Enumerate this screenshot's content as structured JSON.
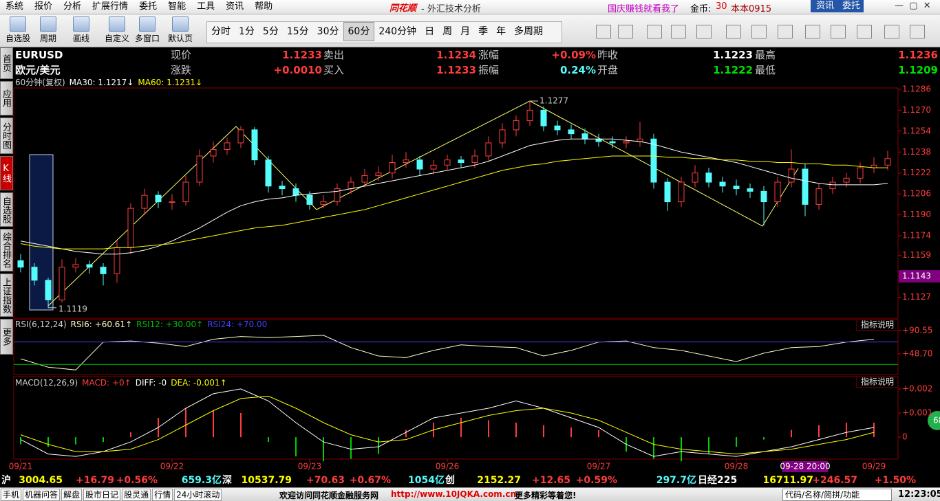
{
  "menu": {
    "items": [
      "系统",
      "报价",
      "分析",
      "扩展行情",
      "委托",
      "智能",
      "工具",
      "资讯",
      "帮助"
    ],
    "logo": "同花顺",
    "title": " - 外汇技术分析",
    "promo": "国庆赚钱就看我了",
    "coin_label": "金币:",
    "coin": "30",
    "user": "本本0915",
    "news": "资讯",
    "trade": "委托"
  },
  "toolbar": {
    "tools": [
      "自选股",
      "周期",
      "画线",
      "自定义",
      "多窗口",
      "默认页"
    ],
    "periods": [
      "分时",
      "1分",
      "5分",
      "15分",
      "30分",
      "60分",
      "240分钟",
      "日",
      "周",
      "月",
      "季",
      "年",
      "多周期"
    ],
    "active_period": 5
  },
  "sidebar": {
    "tabs": [
      "首页",
      "应用",
      "分时图",
      "K线图",
      "自选股",
      "综合排名",
      "上证指数",
      "更多"
    ],
    "active": 3
  },
  "quote": {
    "rows": [
      [
        "EURUSD",
        "现价",
        "1.1233",
        "卖出",
        "1.1234",
        "涨幅",
        "+0.09%",
        "昨收",
        "1.1223",
        "最高",
        "1.1236"
      ],
      [
        "欧元/美元",
        "涨跌",
        "+0.0010",
        "买入",
        "1.1233",
        "振幅",
        "0.24%",
        "开盘",
        "1.1222",
        "最低",
        "1.1209"
      ]
    ],
    "colors": [
      [
        "#ffffff",
        "#c8c8c8",
        "#ff3c3c",
        "#c8c8c8",
        "#ff3c3c",
        "#c8c8c8",
        "#ff3c3c",
        "#c8c8c8",
        "#ffffff",
        "#c8c8c8",
        "#ff3c3c"
      ],
      [
        "#ffffff",
        "#c8c8c8",
        "#ff3c3c",
        "#c8c8c8",
        "#ff3c3c",
        "#c8c8c8",
        "#54fcfc",
        "#c8c8c8",
        "#00e000",
        "#c8c8c8",
        "#00e000"
      ]
    ]
  },
  "chart_data": [
    {
      "type": "candlestick",
      "title": "60分钟(复权)",
      "xlim": [
        -0.5,
        63.75
      ],
      "xticks": [
        {
          "value": 0,
          "label": "09/21"
        },
        {
          "value": 11,
          "label": "09/22"
        },
        {
          "value": 21,
          "label": "09/23"
        },
        {
          "value": 31,
          "label": "09/26"
        },
        {
          "value": 42,
          "label": "09/27"
        },
        {
          "value": 52,
          "label": "09/28"
        },
        {
          "value": 62,
          "label": "09/29"
        }
      ],
      "ylim": [
        1.1111,
        1.1287
      ],
      "yticks": [
        1.1286,
        {
          "value": 1.127,
          "label": "1.1270"
        },
        1.1254,
        1.1238,
        1.1222,
        1.1206,
        {
          "value": 1.119,
          "label": "1.1190"
        },
        1.1174,
        1.1159,
        1.1143,
        1.1127
      ],
      "highlight_tick": 9,
      "up_color": "#ff3c3c",
      "down_color": "#54fcfc",
      "ohlc": [
        [
          1.1155,
          1.116,
          1.1146,
          1.115
        ],
        [
          1.115,
          1.1153,
          1.1136,
          1.114
        ],
        [
          1.114,
          1.1142,
          1.1119,
          1.1125
        ],
        [
          1.1125,
          1.1156,
          1.1123,
          1.115
        ],
        [
          1.115,
          1.1157,
          1.1146,
          1.1152
        ],
        [
          1.1152,
          1.1155,
          1.1145,
          1.115
        ],
        [
          1.115,
          1.1153,
          1.1136,
          1.1145
        ],
        [
          1.1145,
          1.117,
          1.1138,
          1.1165
        ],
        [
          1.1165,
          1.1199,
          1.116,
          1.1195
        ],
        [
          1.1195,
          1.121,
          1.119,
          1.1205
        ],
        [
          1.1205,
          1.1208,
          1.1195,
          1.12
        ],
        [
          1.12,
          1.1206,
          1.1194,
          1.12
        ],
        [
          1.12,
          1.122,
          1.1197,
          1.1215
        ],
        [
          1.1215,
          1.124,
          1.1212,
          1.1235
        ],
        [
          1.1235,
          1.1246,
          1.123,
          1.124
        ],
        [
          1.124,
          1.1249,
          1.1236,
          1.1245
        ],
        [
          1.1245,
          1.1258,
          1.1241,
          1.1255
        ],
        [
          1.1255,
          1.1257,
          1.1228,
          1.1232
        ],
        [
          1.1232,
          1.1235,
          1.1207,
          1.1212
        ],
        [
          1.1212,
          1.1216,
          1.1205,
          1.121
        ],
        [
          1.121,
          1.1214,
          1.12,
          1.1205
        ],
        [
          1.1205,
          1.1208,
          1.1194,
          1.1198
        ],
        [
          1.1198,
          1.1205,
          1.1195,
          1.12
        ],
        [
          1.12,
          1.1214,
          1.1197,
          1.121
        ],
        [
          1.121,
          1.1219,
          1.1206,
          1.1215
        ],
        [
          1.1215,
          1.1225,
          1.1211,
          1.122
        ],
        [
          1.122,
          1.1227,
          1.1216,
          1.1222
        ],
        [
          1.1222,
          1.1236,
          1.1218,
          1.123
        ],
        [
          1.123,
          1.1238,
          1.1226,
          1.1232
        ],
        [
          1.1232,
          1.1235,
          1.122,
          1.1225
        ],
        [
          1.1225,
          1.1232,
          1.1221,
          1.1228
        ],
        [
          1.1228,
          1.1236,
          1.1224,
          1.1232
        ],
        [
          1.1232,
          1.1235,
          1.1226,
          1.123
        ],
        [
          1.123,
          1.124,
          1.1226,
          1.1235
        ],
        [
          1.1235,
          1.125,
          1.1231,
          1.1245
        ],
        [
          1.1245,
          1.126,
          1.1241,
          1.1255
        ],
        [
          1.1255,
          1.1266,
          1.125,
          1.1262
        ],
        [
          1.1262,
          1.1277,
          1.1258,
          1.127
        ],
        [
          1.127,
          1.1273,
          1.1254,
          1.1258
        ],
        [
          1.1258,
          1.1262,
          1.1251,
          1.1255
        ],
        [
          1.1255,
          1.1259,
          1.1248,
          1.1252
        ],
        [
          1.1252,
          1.1256,
          1.1244,
          1.1248
        ],
        [
          1.1248,
          1.1252,
          1.1242,
          1.1246
        ],
        [
          1.1246,
          1.125,
          1.1241,
          1.1245
        ],
        [
          1.1245,
          1.125,
          1.1241,
          1.1246
        ],
        [
          1.1246,
          1.1261,
          1.1242,
          1.1248
        ],
        [
          1.1248,
          1.1252,
          1.121,
          1.1215
        ],
        [
          1.1215,
          1.1218,
          1.1193,
          1.12
        ],
        [
          1.12,
          1.1219,
          1.1196,
          1.1215
        ],
        [
          1.1215,
          1.1228,
          1.1211,
          1.1222
        ],
        [
          1.1222,
          1.1226,
          1.1211,
          1.1215
        ],
        [
          1.1215,
          1.1219,
          1.1207,
          1.1212
        ],
        [
          1.1212,
          1.1217,
          1.1205,
          1.121
        ],
        [
          1.121,
          1.1214,
          1.1203,
          1.1208
        ],
        [
          1.1208,
          1.1212,
          1.1182,
          1.12
        ],
        [
          1.12,
          1.1219,
          1.1196,
          1.1215
        ],
        [
          1.1215,
          1.124,
          1.1211,
          1.1225
        ],
        [
          1.1225,
          1.1229,
          1.1189,
          1.1198
        ],
        [
          1.1198,
          1.1214,
          1.1194,
          1.121
        ],
        [
          1.121,
          1.1219,
          1.1206,
          1.1215
        ],
        [
          1.1215,
          1.1222,
          1.1211,
          1.1218
        ],
        [
          1.1218,
          1.123,
          1.1214,
          1.1226
        ],
        [
          1.1226,
          1.1234,
          1.1222,
          1.1228
        ],
        [
          1.1228,
          1.1239,
          1.1224,
          1.1233
        ]
      ],
      "series": [
        {
          "name": "MA30: 1.1217↓",
          "color": "#ffffff",
          "values": [
            1.117,
            1.1168,
            1.1166,
            1.1164,
            1.1162,
            1.1161,
            1.116,
            1.116,
            1.1161,
            1.1163,
            1.1166,
            1.117,
            1.1175,
            1.118,
            1.1186,
            1.1192,
            1.1197,
            1.12,
            1.1202,
            1.1203,
            1.1205,
            1.1206,
            1.1207,
            1.1208,
            1.121,
            1.1212,
            1.1214,
            1.1216,
            1.1218,
            1.122,
            1.1222,
            1.1224,
            1.1226,
            1.1228,
            1.1231,
            1.1235,
            1.1239,
            1.1243,
            1.1245,
            1.1247,
            1.1248,
            1.1248,
            1.1248,
            1.1248,
            1.1247,
            1.1246,
            1.1244,
            1.1241,
            1.1238,
            1.1236,
            1.1234,
            1.1232,
            1.123,
            1.1227,
            1.1224,
            1.1221,
            1.1218,
            1.1216,
            1.1214,
            1.1213,
            1.1213,
            1.1213,
            1.1213,
            1.1214
          ]
        },
        {
          "name": "MA60: 1.1231↓",
          "color": "#ffff00",
          "values": [
            1.1168,
            1.1166,
            1.1165,
            1.1164,
            1.1164,
            1.1164,
            1.1164,
            1.1165,
            1.1165,
            1.1166,
            1.1167,
            1.1168,
            1.117,
            1.1172,
            1.1174,
            1.1176,
            1.1178,
            1.118,
            1.1181,
            1.1182,
            1.1184,
            1.1186,
            1.1188,
            1.119,
            1.1192,
            1.1194,
            1.1197,
            1.12,
            1.1203,
            1.1206,
            1.1209,
            1.1212,
            1.1215,
            1.1218,
            1.1221,
            1.1224,
            1.1226,
            1.1228,
            1.1229,
            1.1231,
            1.1232,
            1.1233,
            1.1234,
            1.1235,
            1.1235,
            1.1235,
            1.1235,
            1.1234,
            1.1234,
            1.1233,
            1.1233,
            1.1232,
            1.1232,
            1.1231,
            1.1231,
            1.123,
            1.123,
            1.1229,
            1.1229,
            1.1228,
            1.1228,
            1.1227,
            1.1226,
            1.1226
          ]
        }
      ],
      "high_label": 1.1277,
      "low_label": 1.1119,
      "cursor": {
        "index": 57,
        "label": "09-28 20:00"
      }
    },
    {
      "type": "rsi",
      "title": "RSI(6,12,24)",
      "indicator_button": "指标说明",
      "xlim": [
        -0.25,
        31.875
      ],
      "ylim": [
        11.8,
        110.2
      ],
      "yticks": [
        {
          "value": 90.55,
          "label": "+90.55"
        },
        {
          "value": 48.7,
          "label": "+48.70"
        }
      ],
      "series": [
        {
          "name": "RSI6: +60.61↑",
          "color": "#ffffcc",
          "values": [
            40,
            25,
            20,
            70,
            72,
            68,
            62,
            75,
            80,
            78,
            80,
            82,
            60,
            45,
            42,
            55,
            65,
            62,
            60,
            45,
            55,
            70,
            72,
            60,
            55,
            45,
            35,
            50,
            60,
            62,
            70,
            75
          ]
        },
        {
          "name": "RSI12: +30.00↑",
          "color": "#00c000",
          "level": 30
        },
        {
          "name": "RSI24: +70.00",
          "color": "#4040ff",
          "level": 70
        }
      ]
    },
    {
      "type": "macd",
      "title": "MACD(12,26,9)",
      "indicator_button": "指标说明",
      "xlim": [
        -0.25,
        31.875
      ],
      "ylim": [
        -0.00091,
        0.00251
      ],
      "yticks": [
        {
          "value": 0.002,
          "label": "+0.002"
        },
        {
          "value": 0.001,
          "label": "+0.001"
        },
        0
      ],
      "series": [
        {
          "name": "MACD: +0↑",
          "color": "#ff3c3c",
          "negative_color": "#00d000",
          "style": "bar",
          "values": [
            -0.0003,
            -0.0004,
            -0.0003,
            -0.0002,
            0.0002,
            0.0008,
            0.0012,
            0.0011,
            0.001,
            -0.0002,
            -0.0008,
            -0.001,
            -0.0009,
            -0.0007,
            0.0003,
            0.0006,
            0.0008,
            0.0007,
            0.0006,
            0.0005,
            0.0004,
            0.0003,
            -0.0006,
            -0.0009,
            -0.001,
            -0.0007,
            -0.0004,
            -0.0001,
            0.0003,
            0.0005,
            0.0006,
            0.0006
          ]
        },
        {
          "name": "DIFF: -0",
          "color": "#ffffff",
          "values": [
            -0.0001,
            -0.0007,
            -0.0008,
            -0.0006,
            -0.0002,
            0.0004,
            0.0012,
            0.0018,
            0.002,
            0.0015,
            0.0006,
            -0.0002,
            -0.0005,
            -0.0004,
            0.0002,
            0.0008,
            0.001,
            0.0012,
            0.0015,
            0.0012,
            0.0008,
            0.0004,
            -0.0003,
            -0.0008,
            -0.0006,
            -0.0007,
            -0.0008,
            -0.0006,
            -0.0004,
            -0.0001,
            0.0002,
            0.0004
          ]
        },
        {
          "name": "DEA: -0.001↑",
          "color": "#ffff00",
          "values": [
            0.0001,
            -0.0003,
            -0.0006,
            -0.0006,
            -0.0005,
            -0.0001,
            0.0005,
            0.0011,
            0.0016,
            0.0017,
            0.0012,
            0.0006,
            0.0001,
            -0.0002,
            -0.0001,
            0.0003,
            0.0006,
            0.0009,
            0.0011,
            0.0012,
            0.001,
            0.0007,
            0.0002,
            -0.0003,
            -0.0005,
            -0.0006,
            -0.0007,
            -0.0006,
            -0.0005,
            -0.0003,
            -0.0001,
            0.0002
          ]
        }
      ]
    }
  ],
  "status": {
    "items": [
      "沪",
      "3004.65",
      "+16.79",
      "+0.56%",
      "659.3亿",
      "深",
      "10537.79",
      "+70.63",
      "+0.67%",
      "1054亿",
      "创",
      "2152.27",
      "+12.65",
      "+0.59%",
      "297.7亿",
      "日经225",
      "16711.97",
      "+246.57",
      "+1.50%"
    ],
    "colors": [
      "#ffffff",
      "#ffff00",
      "#ff3c3c",
      "#ff3c3c",
      "#54fcfc",
      "#ffffff",
      "#ffff00",
      "#ff3c3c",
      "#ff3c3c",
      "#54fcfc",
      "#ffffff",
      "#ffff00",
      "#ff3c3c",
      "#ff3c3c",
      "#54fcfc",
      "#ffffff",
      "#ffff00",
      "#ff3c3c",
      "#ff3c3c"
    ]
  },
  "footer": {
    "links": [
      "手机",
      "机器问答",
      "解盘",
      "股市日记",
      "股灵通",
      "行情",
      "24小时滚动"
    ],
    "welcome": "欢迎访问同花顺金融服务网",
    "url": "http://www.10JQKA.com.cn",
    "more": "更多精彩等着您!",
    "search": "代码/名称/简拼/功能",
    "time": "12:23:05",
    "badge": "68"
  }
}
